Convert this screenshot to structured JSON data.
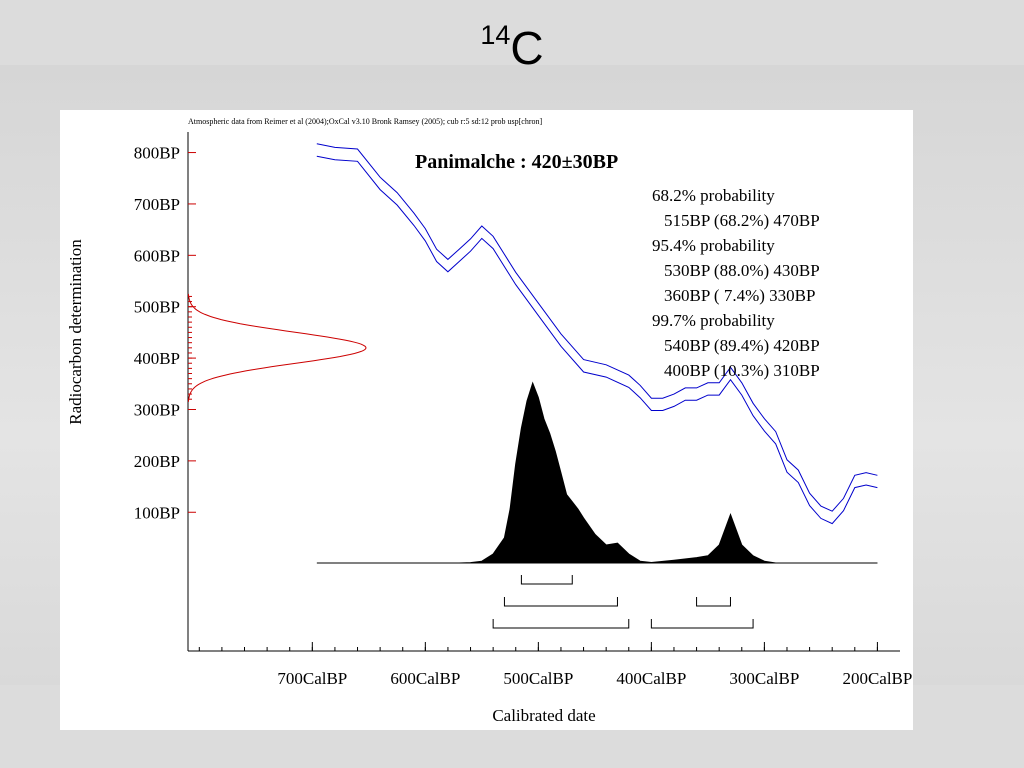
{
  "slide": {
    "title_sup": "14",
    "title_main": "C"
  },
  "chart_data": {
    "type": "area",
    "source_note": "Atmospheric data from Reimer et al (2004);OxCal v3.10 Bronk Ramsey (2005); cub r:5 sd:12 prob usp[chron]",
    "title": "Panimalche : 420±30BP",
    "xlabel": "Calibrated date",
    "ylabel": "Radiocarbon determination",
    "x_direction": "reversed",
    "xlim": [
      810,
      180
    ],
    "ylim": [
      -170,
      840
    ],
    "x_ticks": [
      700,
      600,
      500,
      400,
      300,
      200
    ],
    "x_tick_labels": [
      "700CalBP",
      "600CalBP",
      "500CalBP",
      "400CalBP",
      "300CalBP",
      "200CalBP"
    ],
    "y_ticks": [
      800,
      700,
      600,
      500,
      400,
      300,
      200,
      100
    ],
    "y_tick_labels": [
      "800BP",
      "700BP",
      "600BP",
      "500BP",
      "400BP",
      "300BP",
      "200BP",
      "100BP"
    ],
    "calibration_curve": {
      "color": "#0000cc",
      "x": [
        696,
        680,
        660,
        640,
        625,
        610,
        600,
        590,
        580,
        570,
        560,
        550,
        540,
        520,
        500,
        480,
        460,
        440,
        420,
        410,
        400,
        390,
        380,
        370,
        360,
        350,
        340,
        330,
        320,
        310,
        300,
        290,
        280,
        270,
        260,
        250,
        240,
        230,
        220,
        210,
        200
      ],
      "y": [
        805,
        798,
        795,
        740,
        710,
        670,
        640,
        600,
        580,
        600,
        620,
        645,
        625,
        555,
        495,
        435,
        385,
        375,
        355,
        335,
        310,
        310,
        318,
        330,
        330,
        340,
        340,
        370,
        340,
        300,
        270,
        245,
        190,
        170,
        125,
        100,
        90,
        115,
        160,
        165,
        160
      ],
      "error": 12
    },
    "radiocarbon_date": {
      "color": "#cc0000",
      "mean": 420,
      "sd": 30,
      "label": "420±30BP"
    },
    "calibrated_distribution": {
      "x": [
        590,
        570,
        560,
        550,
        540,
        530,
        525,
        520,
        515,
        510,
        505,
        500,
        495,
        490,
        485,
        480,
        475,
        470,
        465,
        460,
        450,
        440,
        430,
        420,
        410,
        400,
        380,
        360,
        350,
        340,
        330,
        320,
        310,
        300,
        290,
        200
      ],
      "density": [
        0,
        0,
        0.002,
        0.01,
        0.05,
        0.14,
        0.3,
        0.55,
        0.75,
        0.9,
        1.0,
        0.92,
        0.8,
        0.72,
        0.62,
        0.5,
        0.38,
        0.34,
        0.3,
        0.25,
        0.16,
        0.1,
        0.11,
        0.05,
        0.01,
        0.003,
        0.015,
        0.03,
        0.04,
        0.1,
        0.27,
        0.1,
        0.04,
        0.01,
        0,
        0
      ]
    },
    "probability_ranges": [
      {
        "level": "68.2% probability",
        "ranges": [
          {
            "label": "515BP (68.2%) 470BP",
            "from": 515,
            "to": 470
          }
        ]
      },
      {
        "level": "95.4% probability",
        "ranges": [
          {
            "label": "530BP (88.0%) 430BP",
            "from": 530,
            "to": 430
          },
          {
            "label": "360BP ( 7.4%) 330BP",
            "from": 360,
            "to": 330
          }
        ]
      },
      {
        "level": "99.7% probability",
        "ranges": [
          {
            "label": "540BP (89.4%) 420BP",
            "from": 540,
            "to": 420
          },
          {
            "label": "400BP (10.3%) 310BP",
            "from": 400,
            "to": 310
          }
        ]
      }
    ],
    "grid": false,
    "legend": "none"
  }
}
